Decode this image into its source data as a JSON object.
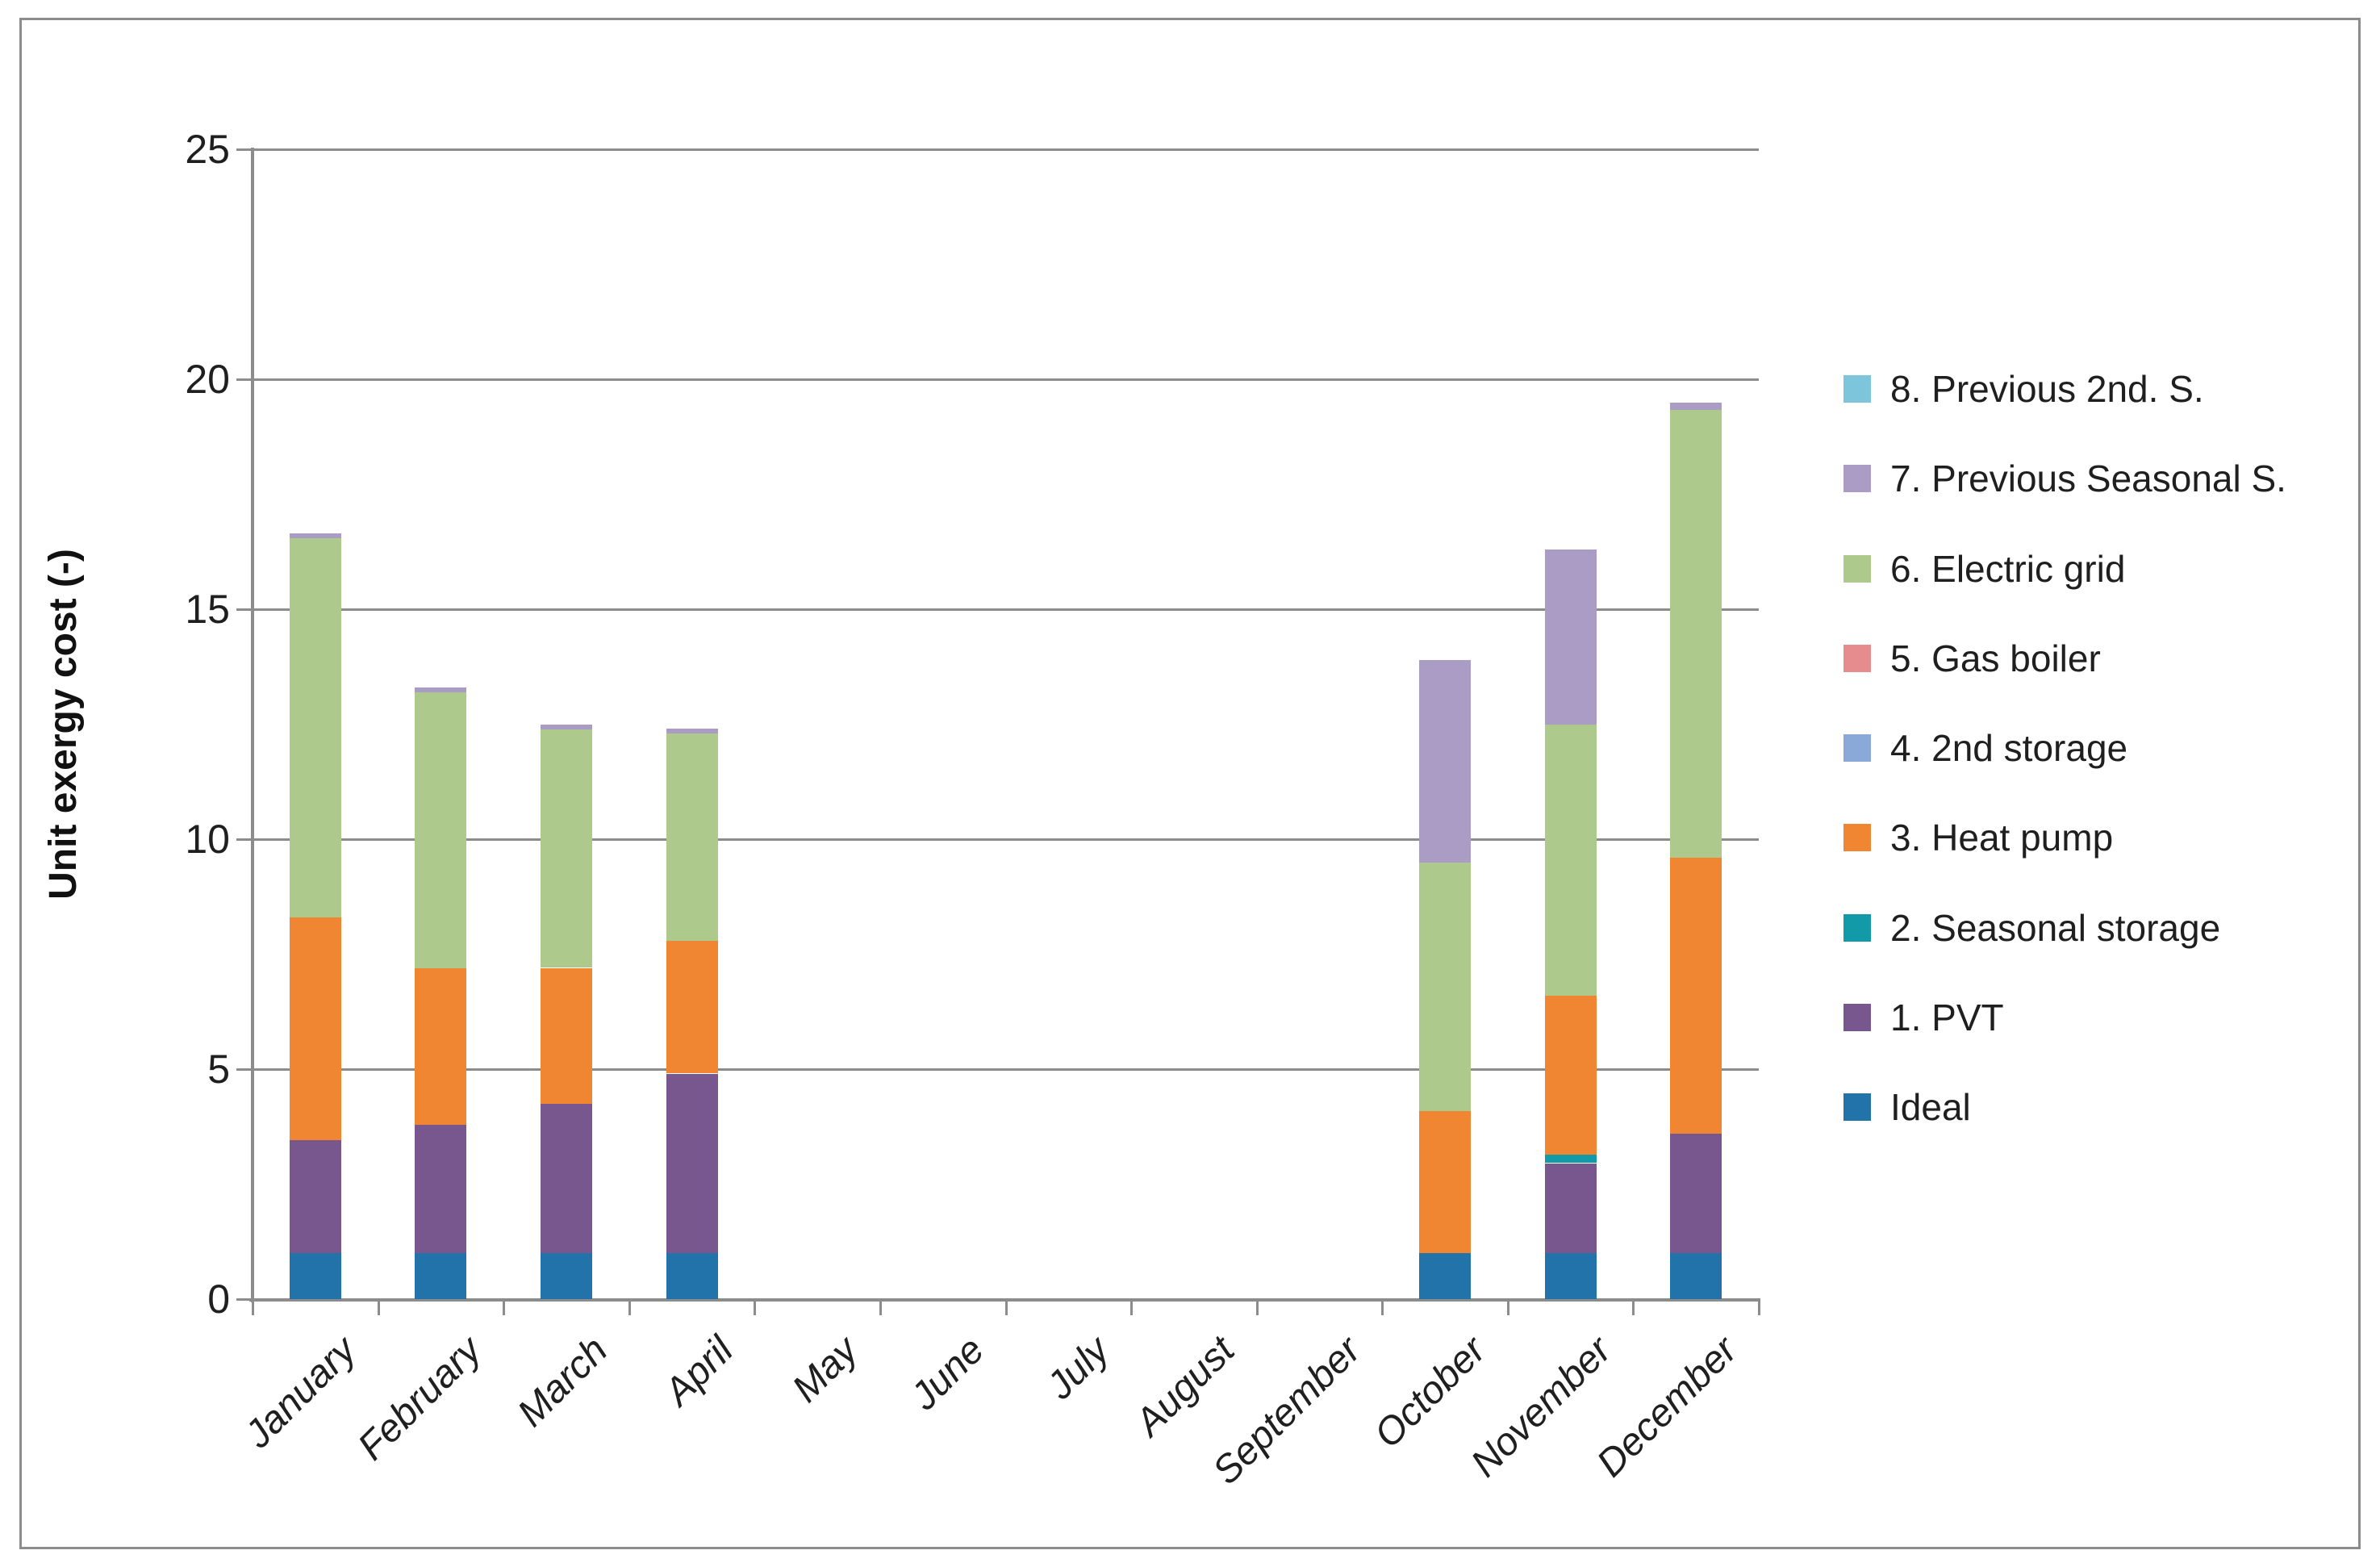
{
  "chart_data": {
    "type": "bar",
    "stacked": true,
    "title": "",
    "xlabel": "",
    "ylabel": "Unit exergy cost (-)",
    "ylim": [
      0,
      25
    ],
    "grid": true,
    "legend_position": "right",
    "y_tick_labels": [
      "25",
      "20",
      "15",
      "10",
      "5",
      "0"
    ],
    "categories": [
      "January",
      "February",
      "March",
      "April",
      "May",
      "June",
      "July",
      "August",
      "September",
      "October",
      "November",
      "December"
    ],
    "series": [
      {
        "name": "Ideal",
        "color": "#2173A9",
        "values": [
          1.0,
          1.0,
          1.0,
          1.0,
          0,
          0,
          0,
          0,
          0,
          1.0,
          1.0,
          1.0
        ]
      },
      {
        "name": "1. PVT",
        "color": "#78578F",
        "values": [
          2.45,
          2.8,
          3.25,
          3.9,
          0,
          0,
          0,
          0,
          0,
          0,
          1.95,
          2.6
        ]
      },
      {
        "name": "2. Seasonal storage",
        "color": "#129AA9",
        "values": [
          0,
          0,
          0,
          0,
          0,
          0,
          0,
          0,
          0,
          0,
          0.2,
          0
        ]
      },
      {
        "name": "3. Heat pump",
        "color": "#F08532",
        "values": [
          4.85,
          3.4,
          2.95,
          2.9,
          0,
          0,
          0,
          0,
          0,
          3.1,
          3.45,
          6.0
        ]
      },
      {
        "name": "4. 2nd storage",
        "color": "#8AA8D8",
        "values": [
          0,
          0,
          0,
          0,
          0,
          0,
          0,
          0,
          0,
          0,
          0,
          0
        ]
      },
      {
        "name": "5. Gas boiler",
        "color": "#E68B8E",
        "values": [
          0,
          0,
          0,
          0,
          0,
          0,
          0,
          0,
          0,
          0,
          0,
          0
        ]
      },
      {
        "name": "6. Electric grid",
        "color": "#ADCA8C",
        "values": [
          8.25,
          6.0,
          5.2,
          4.5,
          0,
          0,
          0,
          0,
          0,
          5.4,
          5.9,
          9.75
        ]
      },
      {
        "name": "7. Previous Seasonal S.",
        "color": "#AB9CC6",
        "values": [
          0.1,
          0.1,
          0.1,
          0.1,
          0,
          0,
          0,
          0,
          0,
          4.4,
          3.8,
          0.15
        ]
      },
      {
        "name": "8. Previous 2nd. S.",
        "color": "#7CC5DB",
        "values": [
          0,
          0,
          0,
          0,
          0,
          0,
          0,
          0,
          0,
          0,
          0,
          0
        ]
      }
    ],
    "totals": [
      16.65,
      13.3,
      12.5,
      12.4,
      0,
      0,
      0,
      0,
      0,
      13.9,
      16.3,
      19.5
    ]
  },
  "legend": {
    "order_note": "displayed top to bottom, reverse of stacking order",
    "labels_top_to_bottom": [
      "8. Previous 2nd. S.",
      "7. Previous Seasonal S.",
      "6. Electric grid",
      "5. Gas boiler",
      "4. 2nd storage",
      "3. Heat pump",
      "2. Seasonal storage",
      "1. PVT",
      "Ideal"
    ]
  }
}
